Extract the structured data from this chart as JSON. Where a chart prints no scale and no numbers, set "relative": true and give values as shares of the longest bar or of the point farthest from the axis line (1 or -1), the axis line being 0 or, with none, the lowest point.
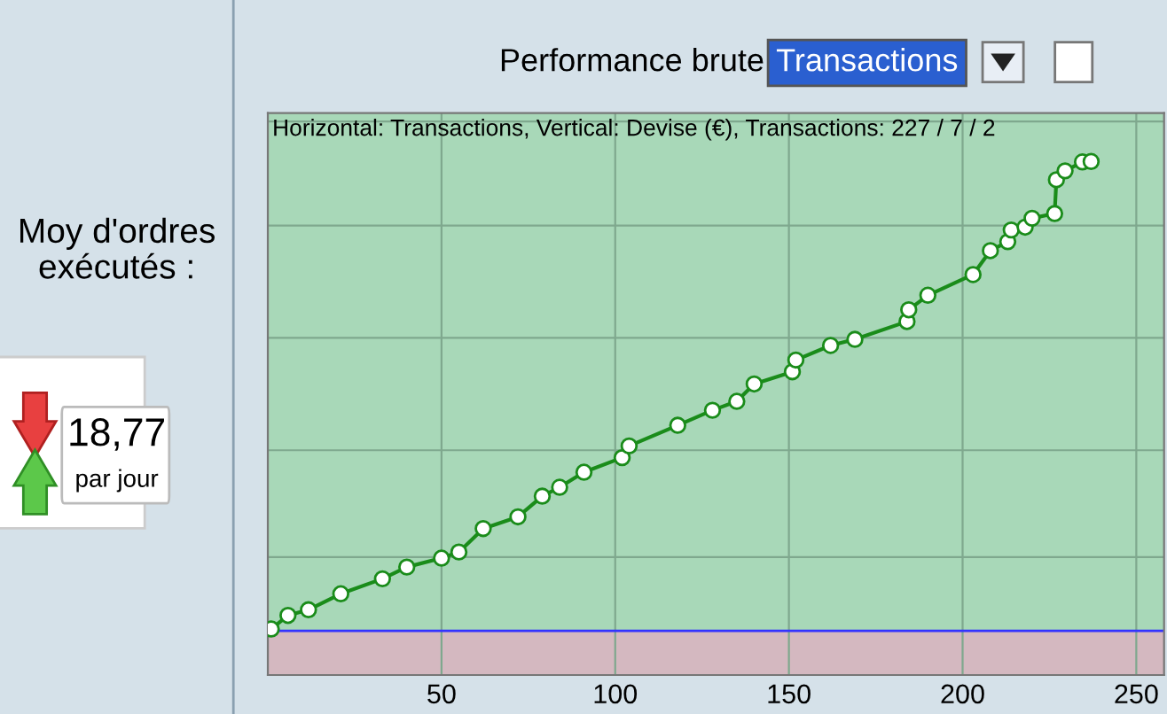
{
  "chart_data": [
    {
      "type": "other",
      "title": "Moy d'ordres exécutés :",
      "annotations": [
        "18,77",
        "par jour"
      ]
    },
    {
      "type": "line",
      "title": "Performance brute",
      "subtitle": "Horizontal: Transactions, Vertical: Devise (€), Transactions: 227 / 7 / 2",
      "annotations": [
        "Transactions"
      ],
      "relative": true,
      "series": [
        {
          "color": "#1a8c1a",
          "x": [
            1,
            5.8,
            11.7,
            21,
            33,
            40,
            50,
            55,
            62,
            72,
            79,
            84,
            91,
            102,
            104,
            118,
            128,
            135,
            140,
            151,
            152,
            162,
            169,
            184,
            184.5,
            190,
            203,
            208,
            213,
            214,
            218,
            220,
            226.5,
            227,
            229.5,
            234.5,
            237
          ],
          "values": [
            0.004,
            0.033,
            0.045,
            0.079,
            0.111,
            0.136,
            0.155,
            0.168,
            0.218,
            0.243,
            0.287,
            0.306,
            0.338,
            0.369,
            0.394,
            0.438,
            0.47,
            0.489,
            0.526,
            0.552,
            0.577,
            0.608,
            0.621,
            0.659,
            0.684,
            0.715,
            0.759,
            0.81,
            0.829,
            0.854,
            0.86,
            0.879,
            0.889,
            0.961,
            0.98,
            0.999,
            1.0
          ]
        }
      ],
      "xlim": [
        0,
        258
      ],
      "xticks": [
        50,
        100,
        150,
        200,
        250
      ],
      "tick_labels": "x",
      "grid": true,
      "marker": "circle",
      "line_style": "solid",
      "legend": false,
      "ref_lines": [
        {
          "axis": "y",
          "value": 0,
          "color": "#3333ff"
        }
      ]
    }
  ]
}
